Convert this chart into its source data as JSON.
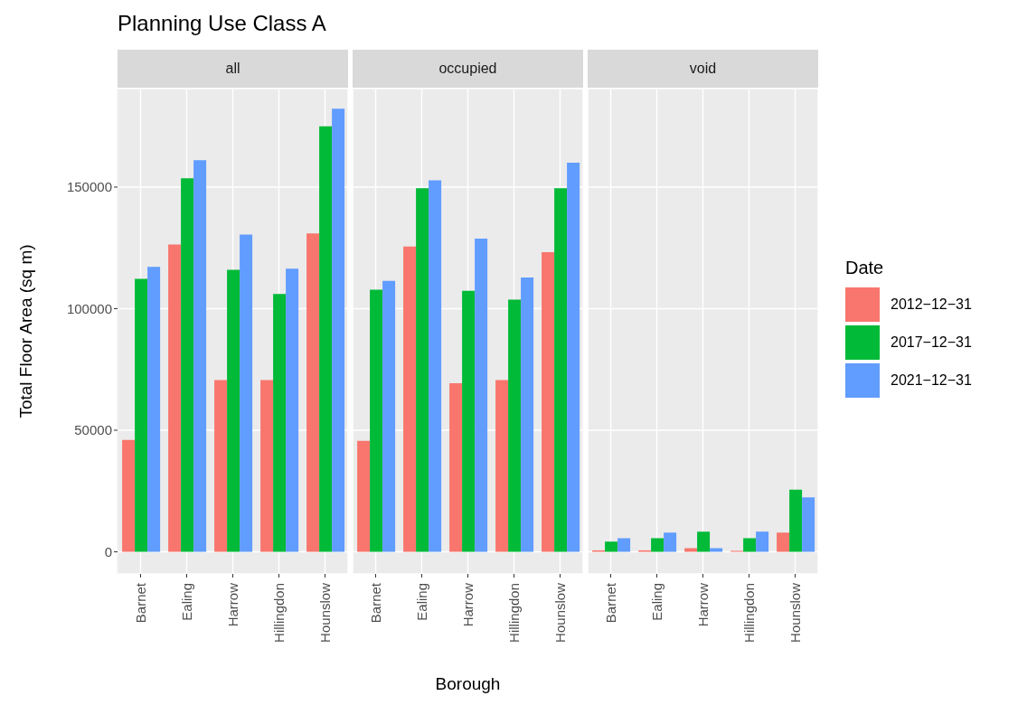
{
  "chart_data": [
    {
      "type": "bar",
      "title": "Planning Use Class A",
      "subtitle": "all",
      "ylabel": "Total Floor Area (sq m)",
      "categories": [
        "Barnet",
        "Ealing",
        "Harrow",
        "Hillingdon",
        "Hounslow"
      ],
      "series": [
        {
          "color": "#f8766d",
          "values": [
            46000,
            126400,
            70600,
            70600,
            130900
          ]
        },
        {
          "color": "#00ba38",
          "values": [
            112300,
            153600,
            116000,
            106000,
            175000
          ]
        },
        {
          "color": "#619cff",
          "values": [
            117200,
            161000,
            130500,
            116400,
            182200
          ]
        }
      ],
      "ylim": [
        -9100,
        190500
      ],
      "yticks": [
        0,
        50000,
        100000,
        150000
      ],
      "grid": true
    },
    {
      "type": "bar",
      "subtitle": "occupied",
      "xlabel": "Borough",
      "categories": [
        "Barnet",
        "Ealing",
        "Harrow",
        "Hillingdon",
        "Hounslow"
      ],
      "series": [
        {
          "color": "#f8766d",
          "values": [
            45600,
            125500,
            69300,
            70600,
            123200
          ]
        },
        {
          "color": "#00ba38",
          "values": [
            107800,
            149500,
            107300,
            103700,
            149500
          ]
        },
        {
          "color": "#619cff",
          "values": [
            111400,
            152800,
            128800,
            112800,
            160000
          ]
        }
      ],
      "ylim": [
        -9100,
        190500
      ],
      "yticks": [
        0,
        50000,
        100000,
        150000
      ],
      "grid": true,
      "tick_labels": "x"
    },
    {
      "type": "bar",
      "subtitle": "void",
      "legend_title": "Date",
      "legend": "right",
      "categories": [
        "Barnet",
        "Ealing",
        "Harrow",
        "Hillingdon",
        "Hounslow"
      ],
      "series": [
        {
          "name": "2012−12−31",
          "color": "#f8766d",
          "values": [
            600,
            600,
            1500,
            400,
            7900
          ]
        },
        {
          "name": "2017−12−31",
          "color": "#00ba38",
          "values": [
            4200,
            5600,
            8300,
            5600,
            25600
          ]
        },
        {
          "name": "2021−12−31",
          "color": "#619cff",
          "values": [
            5600,
            7900,
            1500,
            8300,
            22400
          ]
        }
      ],
      "ylim": [
        -9100,
        190500
      ],
      "yticks": [
        0,
        50000,
        100000,
        150000
      ],
      "grid": true,
      "tick_labels": "x"
    }
  ]
}
